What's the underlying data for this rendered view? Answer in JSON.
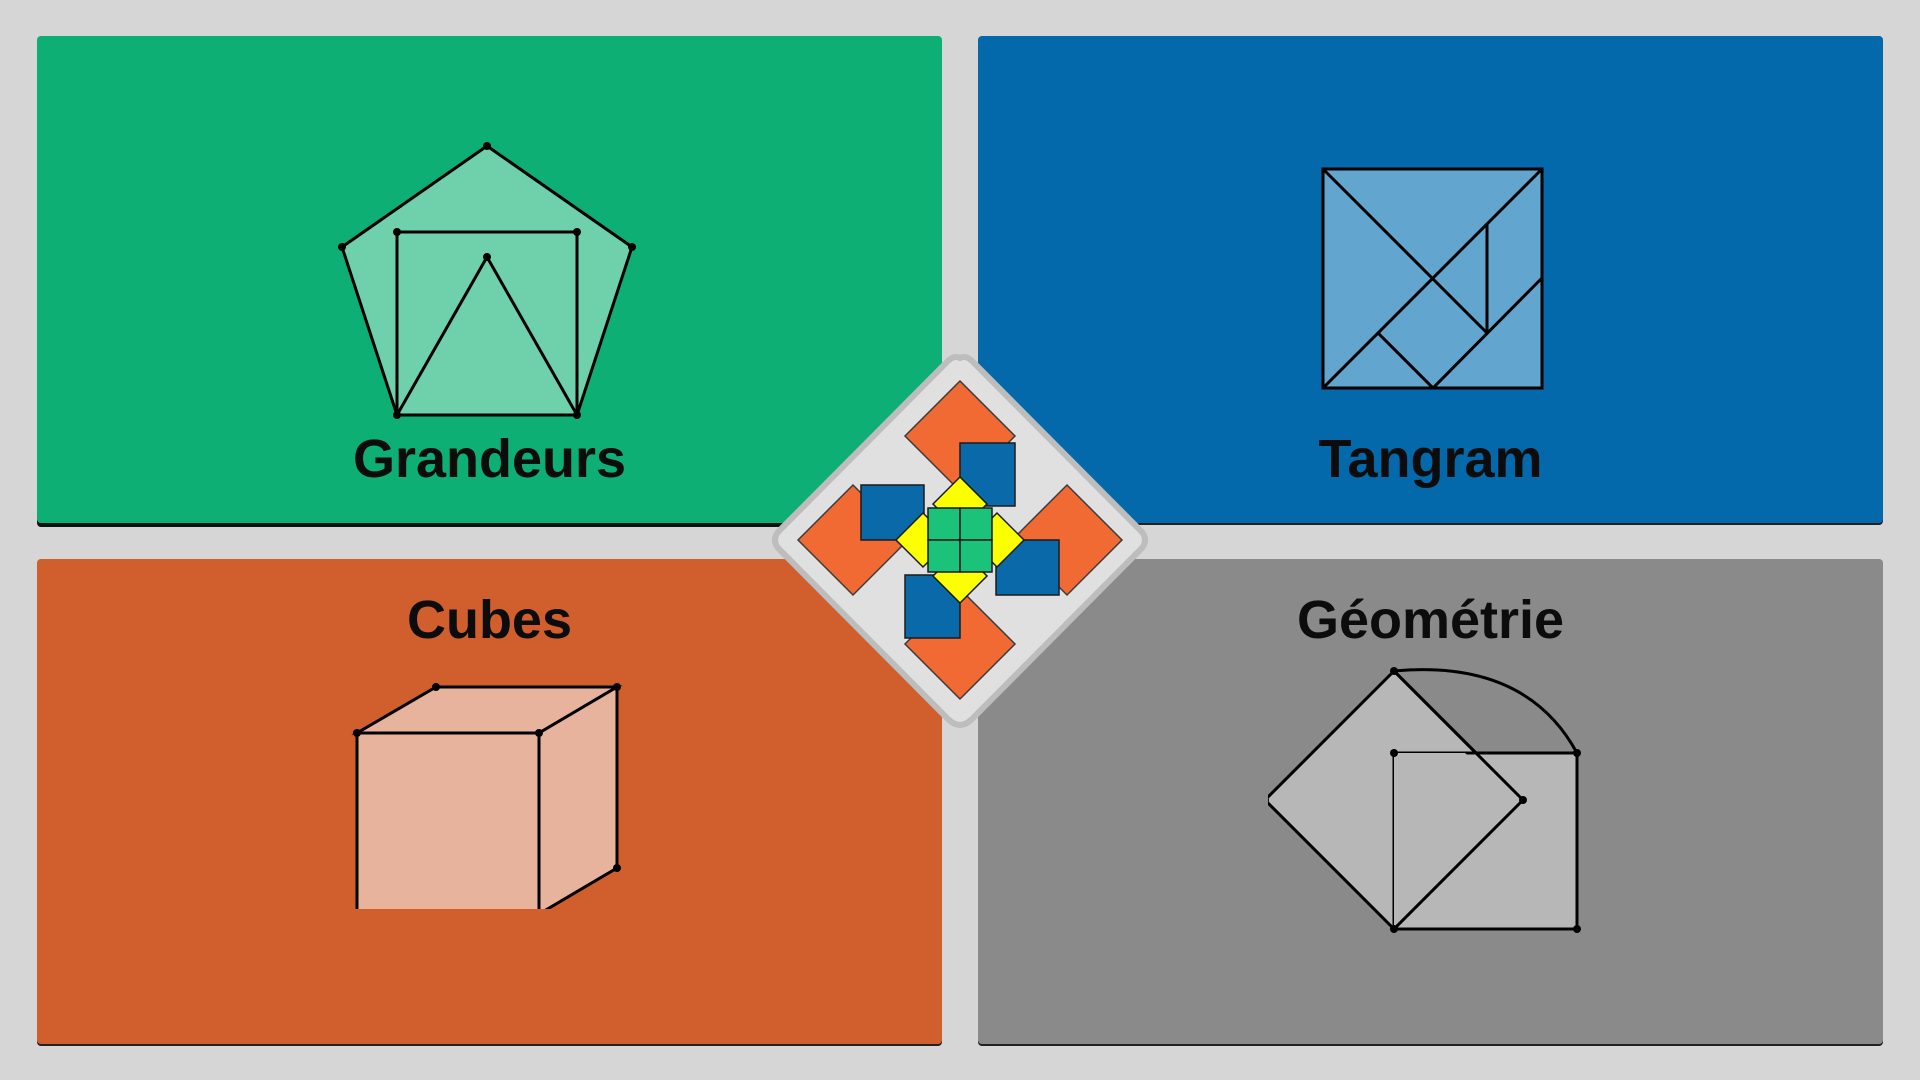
{
  "tiles": [
    {
      "label": "Grandeurs",
      "color": "#0daf74"
    },
    {
      "label": "Tangram",
      "color": "#0469ab"
    },
    {
      "label": "Cubes",
      "color": "#d05f2d"
    },
    {
      "label": "Géométrie",
      "color": "#8a8a8a"
    }
  ],
  "icons": {
    "grandeurs": "pentagon-square-triangle-icon",
    "tangram": "tangram-square-icon",
    "cubes": "cube-icon",
    "geometrie": "rotated-squares-arc-icon",
    "center": "pinwheel-logo-icon"
  },
  "colors": {
    "background": "#d6d6d6",
    "logo_orange": "#f26a33",
    "logo_blue": "#0a69a8",
    "logo_yellow": "#fbff00",
    "logo_green": "#1bc27a"
  }
}
